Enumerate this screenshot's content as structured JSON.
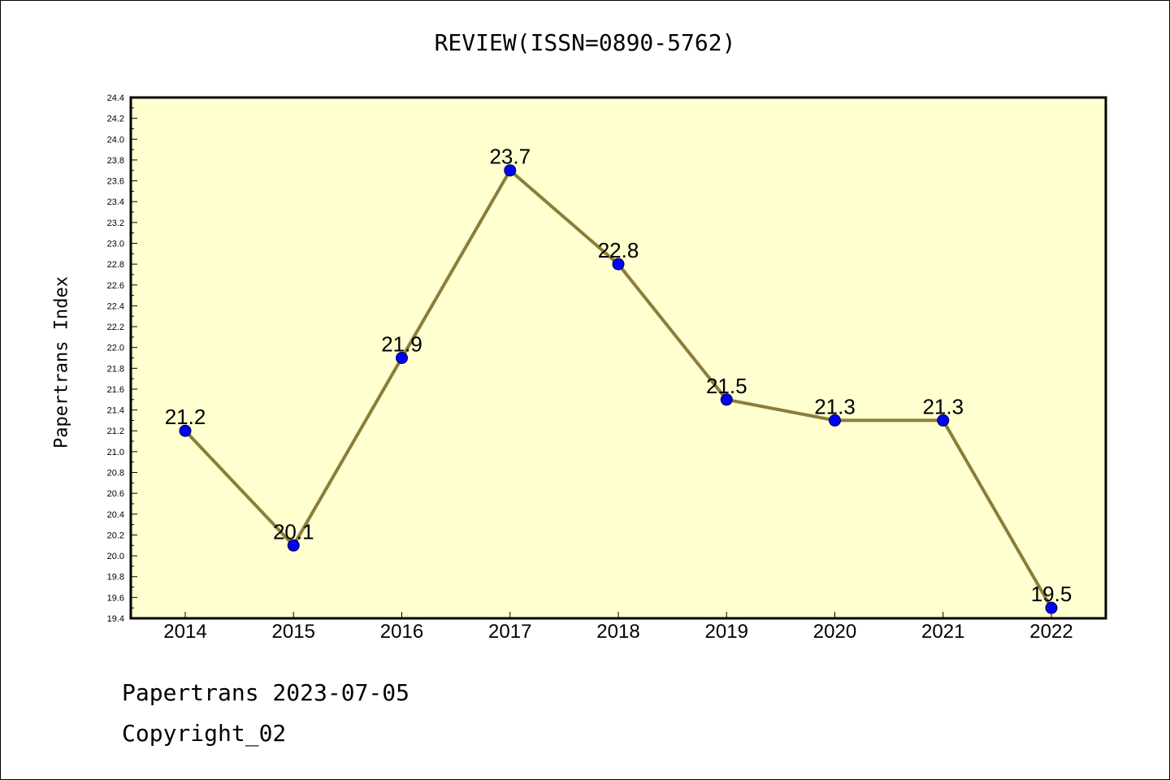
{
  "chart_data": {
    "type": "line",
    "title": "REVIEW(ISSN=0890-5762)",
    "ylabel": "Papertrans Index",
    "xlabel": "",
    "x": [
      "2014",
      "2015",
      "2016",
      "2017",
      "2018",
      "2019",
      "2020",
      "2021",
      "2022"
    ],
    "values": [
      21.2,
      20.1,
      21.9,
      23.7,
      22.8,
      21.5,
      21.3,
      21.3,
      19.5
    ],
    "data_labels": [
      "21.2",
      "20.1",
      "21.9",
      "23.7",
      "22.8",
      "21.5",
      "21.3",
      "21.3",
      "19.5"
    ],
    "ylim": [
      19.4,
      24.4
    ],
    "ytick_step": 0.2,
    "grid": false,
    "colors": {
      "plot_background": "#FFFFD0",
      "line": "#8B7D3A",
      "marker": "#0000FF"
    }
  },
  "footer": {
    "line1": "Papertrans 2023-07-05",
    "line2": "Copyright_02"
  }
}
